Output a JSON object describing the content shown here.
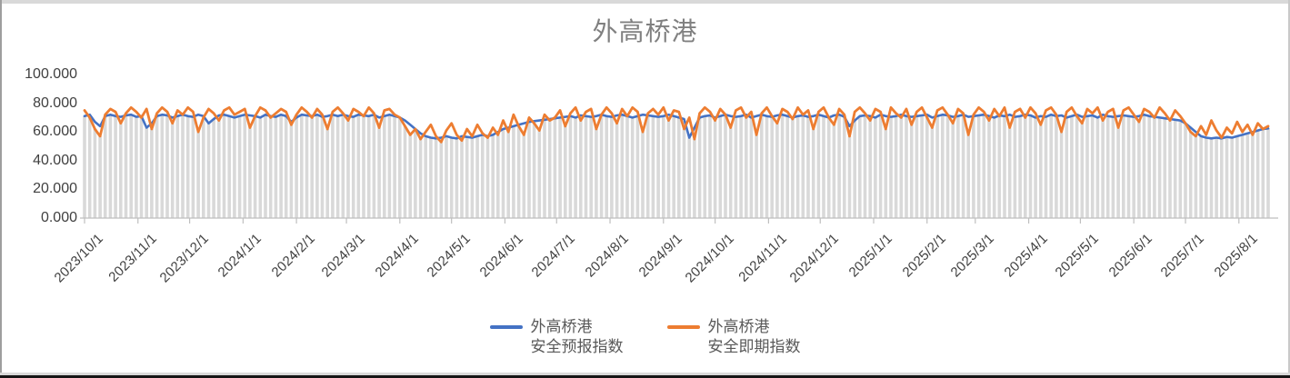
{
  "chart_data": {
    "type": "line",
    "title": "外高桥港",
    "x_start": "2023/10/1",
    "x_interval_days": 3,
    "x_tick_labels": [
      "2023/10/1",
      "2023/11/1",
      "2023/12/1",
      "2024/1/1",
      "2024/2/1",
      "2024/3/1",
      "2024/4/1",
      "2024/5/1",
      "2024/6/1",
      "2024/7/1",
      "2024/8/1",
      "2024/9/1",
      "2024/10/1",
      "2024/11/1",
      "2024/12/1",
      "2025/1/1",
      "2025/2/1",
      "2025/3/1",
      "2025/4/1",
      "2025/5/1",
      "2025/6/1",
      "2025/7/1",
      "2025/8/1"
    ],
    "y_tick_labels": [
      "0.000",
      "20.000",
      "40.000",
      "60.000",
      "80.000",
      "100.000"
    ],
    "y_tick_values": [
      0,
      20,
      40,
      60,
      80,
      100
    ],
    "ylim": [
      0,
      100
    ],
    "grid": "none",
    "legend_position": "bottom",
    "background_bars_color": "#D9D9D9",
    "axis_color": "#BFBFBF",
    "text_colors": {
      "title": "#808080",
      "axis": "#404040",
      "legend": "#595959"
    },
    "series": [
      {
        "name_line1": "外高桥港",
        "name_line2": "安全预报指数",
        "color": "#4472C4",
        "values": [
          71,
          72,
          67,
          64,
          71,
          72,
          71,
          70.5,
          71.5,
          72,
          70.5,
          71,
          63,
          66,
          71,
          72,
          71.5,
          70,
          71,
          72,
          71,
          70.5,
          72,
          71,
          66,
          69,
          71.5,
          72,
          71,
          70,
          71,
          72,
          71.5,
          71,
          70,
          72,
          71,
          70.5,
          72,
          71,
          67,
          70,
          72,
          71.5,
          71,
          72,
          70.5,
          71,
          72,
          71,
          72,
          71,
          70.5,
          72,
          71.5,
          71,
          72,
          70,
          71,
          72,
          71,
          70,
          68,
          65,
          62,
          59,
          57,
          56,
          55.5,
          56,
          57,
          56,
          55.5,
          57,
          56.5,
          56,
          57,
          58,
          57,
          58,
          60,
          62,
          63,
          64,
          65,
          66,
          67,
          67.5,
          68,
          68.5,
          69,
          69.5,
          70,
          70.5,
          71,
          70,
          71.5,
          71,
          70.5,
          71,
          72,
          71,
          70.5,
          71.5,
          72,
          71,
          70,
          71,
          72,
          71.5,
          71,
          70.5,
          71,
          72,
          71,
          70,
          69,
          56,
          63,
          70,
          71,
          71.5,
          70,
          71,
          72,
          71,
          70.5,
          71,
          72,
          70,
          71,
          72,
          71,
          70.5,
          71.5,
          72,
          71,
          70,
          71,
          71.5,
          70.5,
          71,
          72,
          71,
          70,
          71.5,
          72,
          70.5,
          64,
          68,
          71,
          71.5,
          71,
          70,
          72,
          71,
          70.5,
          71,
          72,
          71,
          70.5,
          71,
          71.5,
          72,
          70,
          71,
          72,
          71.5,
          70.5,
          71,
          72,
          70.5,
          71,
          71.5,
          72,
          71,
          70,
          71.5,
          71,
          72,
          70.5,
          71,
          72,
          71.5,
          70,
          71,
          70.5,
          72,
          71,
          71.5,
          70,
          71,
          72,
          70.5,
          71,
          71.5,
          70,
          72,
          71,
          70.5,
          71,
          71.5,
          71,
          70.5,
          71,
          72,
          71,
          70.5,
          70,
          69.5,
          69,
          68.5,
          68,
          66,
          63,
          60,
          57,
          56,
          55.5,
          56,
          55.5,
          56.5,
          56,
          57,
          58,
          59,
          60,
          61,
          62,
          62.5
        ]
      },
      {
        "name_line1": "外高桥港",
        "name_line2": "安全即期指数",
        "color": "#ED7D31",
        "values": [
          75,
          70,
          62,
          57,
          72,
          76,
          74,
          66,
          73,
          77,
          74,
          70,
          76,
          62,
          73,
          77,
          74,
          66,
          75,
          72,
          77,
          74,
          60,
          70,
          76,
          73,
          68,
          75,
          77,
          72,
          74,
          76,
          63,
          71,
          77,
          75,
          70,
          73,
          76,
          74,
          65,
          72,
          77,
          74,
          70,
          76,
          72,
          62,
          74,
          77,
          73,
          68,
          76,
          74,
          71,
          77,
          73,
          63,
          75,
          76,
          72,
          70,
          64,
          58,
          62,
          55,
          60,
          65,
          57,
          53,
          61,
          66,
          58,
          54,
          62,
          57,
          65,
          59,
          56,
          63,
          58,
          68,
          60,
          72,
          64,
          58,
          70,
          66,
          61,
          72,
          68,
          70,
          75,
          64,
          73,
          77,
          68,
          74,
          76,
          62,
          72,
          77,
          73,
          66,
          76,
          71,
          77,
          74,
          60,
          73,
          76,
          72,
          77,
          68,
          75,
          74,
          62,
          70,
          55,
          73,
          77,
          74,
          68,
          76,
          72,
          63,
          75,
          77,
          70,
          74,
          58,
          73,
          77,
          71,
          66,
          76,
          74,
          69,
          77,
          72,
          75,
          62,
          74,
          77,
          70,
          65,
          76,
          72,
          57,
          74,
          77,
          73,
          68,
          76,
          74,
          62,
          77,
          73,
          70,
          76,
          65,
          74,
          77,
          70,
          63,
          75,
          77,
          72,
          66,
          76,
          73,
          58,
          72,
          77,
          74,
          68,
          76,
          71,
          77,
          63,
          74,
          76,
          70,
          77,
          73,
          65,
          75,
          77,
          72,
          60,
          74,
          77,
          71,
          66,
          76,
          73,
          77,
          68,
          74,
          76,
          63,
          75,
          77,
          72,
          67,
          76,
          74,
          70,
          77,
          73,
          68,
          75,
          71,
          66,
          60,
          57,
          64,
          58,
          68,
          61,
          56,
          63,
          59,
          67,
          60,
          65,
          58,
          66,
          62,
          64
        ]
      }
    ]
  }
}
